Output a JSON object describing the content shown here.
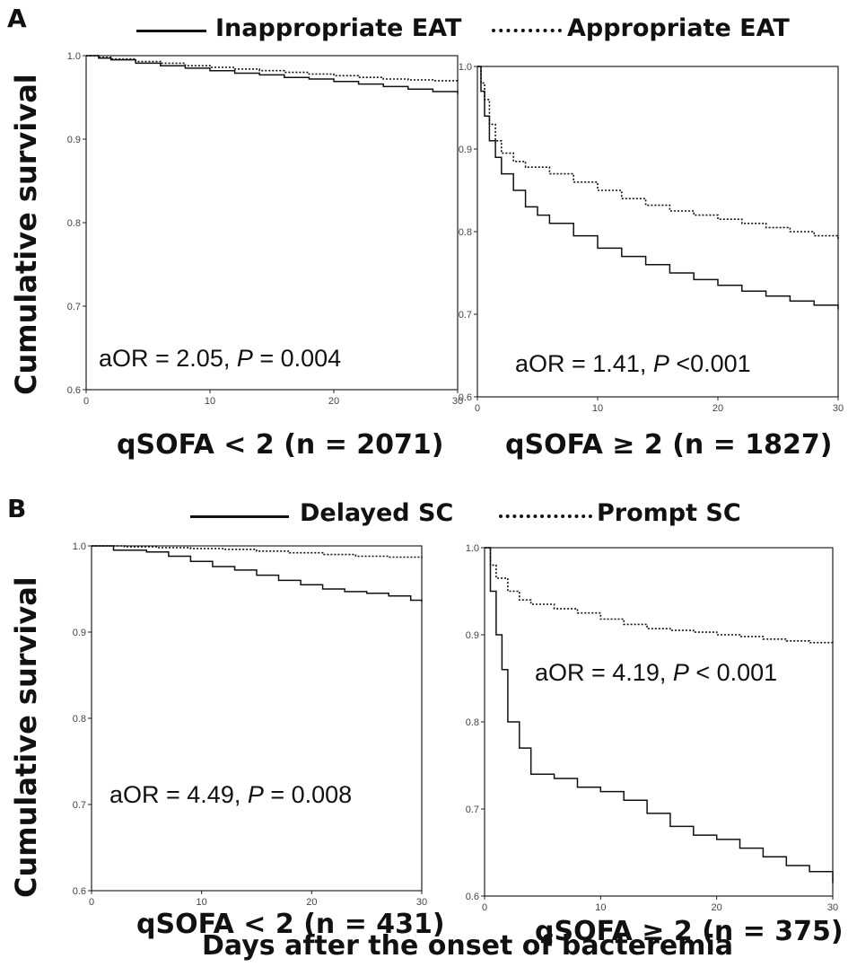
{
  "figure": {
    "common_xlabel": "Days after the onset of bacteremia"
  },
  "chart_data": [
    {
      "panel": "A",
      "legend": {
        "solid": "Inappropriate EAT",
        "dotted": "Appropriate EAT"
      },
      "ylabel": "Cumulative survival",
      "charts": [
        {
          "type": "line",
          "subtitle": "qSOFA < 2 (n = 2071)",
          "annotation": {
            "pre": "aOR = 2.05, ",
            "p": "P",
            "post": " =  0.004"
          },
          "xlim": [
            0,
            30
          ],
          "ylim": [
            0.6,
            1.0
          ],
          "xticks": [
            "0",
            "10",
            "20",
            "30"
          ],
          "yticks": [
            "0.6",
            "0.7",
            "0.8",
            "0.9",
            "1.0"
          ],
          "series": [
            {
              "name": "Inappropriate EAT",
              "style": "solid",
              "x": [
                0,
                1,
                2,
                4,
                6,
                8,
                10,
                12,
                14,
                16,
                18,
                20,
                22,
                24,
                26,
                28,
                30
              ],
              "y": [
                1.0,
                0.997,
                0.995,
                0.991,
                0.988,
                0.985,
                0.982,
                0.979,
                0.977,
                0.974,
                0.972,
                0.969,
                0.966,
                0.963,
                0.96,
                0.957,
                0.954
              ]
            },
            {
              "name": "Appropriate EAT",
              "style": "dotted",
              "x": [
                0,
                1,
                2,
                4,
                6,
                8,
                10,
                12,
                14,
                16,
                18,
                20,
                22,
                24,
                26,
                28,
                30
              ],
              "y": [
                1.0,
                0.998,
                0.996,
                0.993,
                0.991,
                0.988,
                0.986,
                0.984,
                0.982,
                0.98,
                0.978,
                0.976,
                0.974,
                0.972,
                0.971,
                0.97,
                0.969
              ]
            }
          ]
        },
        {
          "type": "line",
          "subtitle": "qSOFA ≥ 2 (n = 1827)",
          "annotation": {
            "pre": "aOR = 1.41, ",
            "p": "P",
            "post": " <0.001"
          },
          "xlim": [
            0,
            30
          ],
          "ylim": [
            0.6,
            1.0
          ],
          "xticks": [
            "0",
            "10",
            "20",
            "30"
          ],
          "yticks": [
            "0.6",
            "0.7",
            "0.8",
            "0.9",
            "1.0"
          ],
          "series": [
            {
              "name": "Inappropriate EAT",
              "style": "solid",
              "x": [
                0,
                0.3,
                0.6,
                1,
                1.5,
                2,
                3,
                4,
                5,
                6,
                8,
                10,
                12,
                14,
                16,
                18,
                20,
                22,
                24,
                26,
                28,
                30
              ],
              "y": [
                1.0,
                0.97,
                0.94,
                0.91,
                0.89,
                0.87,
                0.85,
                0.83,
                0.82,
                0.81,
                0.795,
                0.78,
                0.77,
                0.76,
                0.75,
                0.742,
                0.735,
                0.728,
                0.722,
                0.716,
                0.711,
                0.706
              ]
            },
            {
              "name": "Appropriate EAT",
              "style": "dotted",
              "x": [
                0,
                0.3,
                0.6,
                1,
                1.5,
                2,
                3,
                4,
                6,
                8,
                10,
                12,
                14,
                16,
                18,
                20,
                22,
                24,
                26,
                28,
                30
              ],
              "y": [
                1.0,
                0.98,
                0.96,
                0.93,
                0.91,
                0.895,
                0.885,
                0.878,
                0.87,
                0.86,
                0.85,
                0.84,
                0.832,
                0.825,
                0.82,
                0.815,
                0.81,
                0.805,
                0.8,
                0.795,
                0.79
              ]
            }
          ]
        }
      ]
    },
    {
      "panel": "B",
      "legend": {
        "solid": "Delayed SC",
        "dotted": "Prompt SC"
      },
      "ylabel": "Cumulative survival",
      "charts": [
        {
          "type": "line",
          "subtitle": "qSOFA < 2 (n = 431)",
          "annotation": {
            "pre": "aOR = 4.49, ",
            "p": "P",
            "post": " = 0.008"
          },
          "xlim": [
            0,
            30
          ],
          "ylim": [
            0.6,
            1.0
          ],
          "xticks": [
            "0",
            "10",
            "20",
            "30"
          ],
          "yticks": [
            "0.6",
            "0.7",
            "0.8",
            "0.9",
            "1.0"
          ],
          "series": [
            {
              "name": "Delayed SC",
              "style": "solid",
              "x": [
                0,
                2,
                5,
                7,
                9,
                11,
                13,
                15,
                17,
                19,
                21,
                23,
                25,
                27,
                29,
                30
              ],
              "y": [
                1.0,
                0.995,
                0.993,
                0.988,
                0.982,
                0.976,
                0.972,
                0.966,
                0.96,
                0.955,
                0.95,
                0.947,
                0.945,
                0.942,
                0.937,
                0.935
              ]
            },
            {
              "name": "Prompt SC",
              "style": "dotted",
              "x": [
                0,
                3,
                6,
                9,
                12,
                15,
                18,
                21,
                24,
                27,
                30
              ],
              "y": [
                1.0,
                0.999,
                0.998,
                0.997,
                0.996,
                0.994,
                0.992,
                0.99,
                0.988,
                0.987,
                0.986
              ]
            }
          ]
        },
        {
          "type": "line",
          "subtitle": "qSOFA ≥ 2 (n = 375)",
          "annotation": {
            "pre": "aOR = 4.19, ",
            "p": "P",
            "post": " < 0.001"
          },
          "xlim": [
            0,
            30
          ],
          "ylim": [
            0.6,
            1.0
          ],
          "xticks": [
            "0",
            "10",
            "20",
            "30"
          ],
          "yticks": [
            "0.6",
            "0.7",
            "0.8",
            "0.9",
            "1.0"
          ],
          "series": [
            {
              "name": "Delayed SC",
              "style": "solid",
              "x": [
                0,
                0.5,
                1,
                1.5,
                2,
                3,
                4,
                6,
                8,
                10,
                12,
                14,
                16,
                18,
                20,
                22,
                24,
                26,
                28,
                30
              ],
              "y": [
                1.0,
                0.95,
                0.9,
                0.86,
                0.8,
                0.77,
                0.74,
                0.735,
                0.725,
                0.72,
                0.71,
                0.695,
                0.68,
                0.67,
                0.665,
                0.655,
                0.645,
                0.635,
                0.628,
                0.615
              ]
            },
            {
              "name": "Prompt SC",
              "style": "dotted",
              "x": [
                0,
                0.5,
                1,
                2,
                3,
                4,
                6,
                8,
                10,
                12,
                14,
                16,
                18,
                20,
                22,
                24,
                26,
                28,
                30
              ],
              "y": [
                1.0,
                0.98,
                0.965,
                0.95,
                0.94,
                0.935,
                0.93,
                0.925,
                0.918,
                0.912,
                0.907,
                0.905,
                0.903,
                0.9,
                0.898,
                0.895,
                0.893,
                0.891,
                0.889
              ]
            }
          ]
        }
      ]
    }
  ]
}
